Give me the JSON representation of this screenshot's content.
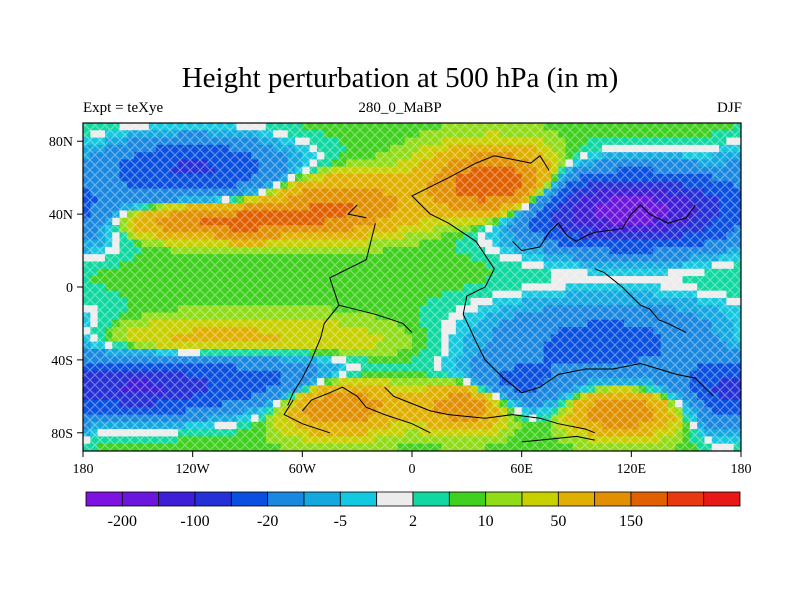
{
  "chart_data": {
    "type": "heatmap",
    "title": "Height perturbation at 500 hPa (in m)",
    "left_label": "Expt = teXye",
    "center_label": "280_0_MaBP",
    "right_label": "DJF",
    "xlim": [
      -180,
      180
    ],
    "ylim": [
      -90,
      90
    ],
    "x_ticks": [
      {
        "value": -180,
        "label": "180"
      },
      {
        "value": -120,
        "label": "120W"
      },
      {
        "value": -60,
        "label": "60W"
      },
      {
        "value": 0,
        "label": "0"
      },
      {
        "value": 60,
        "label": "60E"
      },
      {
        "value": 120,
        "label": "120E"
      },
      {
        "value": 180,
        "label": "180"
      }
    ],
    "y_ticks": [
      {
        "value": 80,
        "label": "80N"
      },
      {
        "value": 40,
        "label": "40N"
      },
      {
        "value": 0,
        "label": "0"
      },
      {
        "value": -40,
        "label": "40S"
      },
      {
        "value": -80,
        "label": "80S"
      }
    ],
    "colorbar": {
      "colors": [
        "#7e12e0",
        "#6a16dc",
        "#3f1ed8",
        "#2530d6",
        "#0a50e0",
        "#1a88e0",
        "#14a8e0",
        "#14c8e0",
        "#ececec",
        "#10d8a0",
        "#40d020",
        "#90dc18",
        "#c8d000",
        "#e0b000",
        "#e09000",
        "#e06000",
        "#e83810",
        "#e81818"
      ],
      "labels": [
        {
          "boundary": 1,
          "label": "-200"
        },
        {
          "boundary": 3,
          "label": "-100"
        },
        {
          "boundary": 5,
          "label": "-20"
        },
        {
          "boundary": 7,
          "label": "-5"
        },
        {
          "boundary": 9,
          "label": "2"
        },
        {
          "boundary": 11,
          "label": "10"
        },
        {
          "boundary": 13,
          "label": "50"
        },
        {
          "boundary": 15,
          "label": "150"
        }
      ]
    },
    "field_features": [
      {
        "lon": -120,
        "lat": 65,
        "value": -110,
        "spread_lon": 32,
        "spread_lat": 11
      },
      {
        "lon": -95,
        "lat": 36,
        "value": 120,
        "spread_lon": 36,
        "spread_lat": 6
      },
      {
        "lon": -40,
        "lat": 46,
        "value": 90,
        "spread_lon": 25,
        "spread_lat": 9
      },
      {
        "lon": 45,
        "lat": 56,
        "value": 160,
        "spread_lon": 22,
        "spread_lat": 11
      },
      {
        "lon": 120,
        "lat": 42,
        "value": -240,
        "spread_lon": 38,
        "spread_lat": 13
      },
      {
        "lon": 108,
        "lat": -30,
        "value": -70,
        "spread_lon": 45,
        "spread_lat": 15
      },
      {
        "lon": 55,
        "lat": -55,
        "value": -60,
        "spread_lon": 20,
        "spread_lat": 10
      },
      {
        "lon": -150,
        "lat": -55,
        "value": -160,
        "spread_lon": 35,
        "spread_lat": 10
      },
      {
        "lon": -75,
        "lat": -50,
        "value": -50,
        "spread_lon": 30,
        "spread_lat": 10
      },
      {
        "lon": -40,
        "lat": -65,
        "value": 90,
        "spread_lon": 20,
        "spread_lat": 9
      },
      {
        "lon": 30,
        "lat": -65,
        "value": 90,
        "spread_lon": 16,
        "spread_lat": 8
      },
      {
        "lon": 115,
        "lat": -68,
        "value": 90,
        "spread_lon": 18,
        "spread_lat": 8
      },
      {
        "lon": -105,
        "lat": -30,
        "value": 25,
        "spread_lon": 60,
        "spread_lat": 8
      },
      {
        "lon": 170,
        "lat": -65,
        "value": -40,
        "spread_lon": 10,
        "spread_lat": 12
      }
    ],
    "background_value": 4,
    "grid": false,
    "legend": "bottom"
  }
}
